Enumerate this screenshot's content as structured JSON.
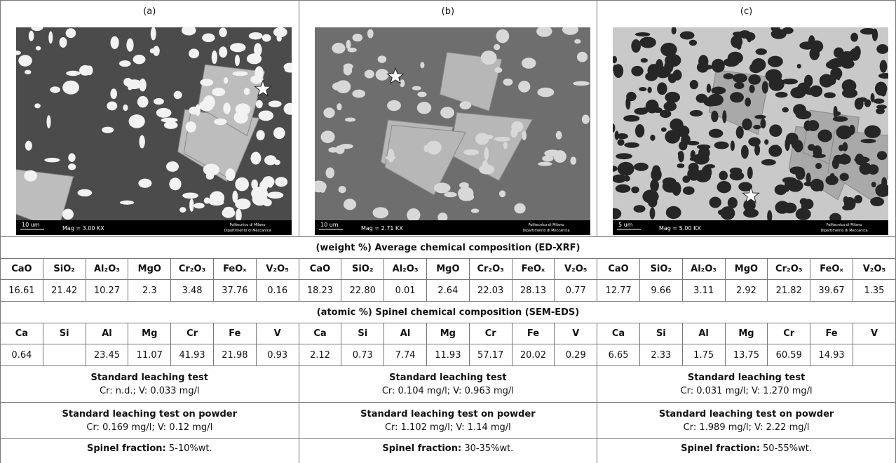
{
  "panels": [
    {
      "label": "(a)",
      "scale_bar": "10 um",
      "magnification": "Mag = 3.00 KX",
      "institution": "Politecnico di Milano",
      "department": "Dipartimento di Meccanica"
    },
    {
      "label": "(b)",
      "scale_bar": "10 um",
      "magnification": "Mag = 2.71 KX",
      "institution": "Politecnico di Milano",
      "department": "Dipartimento di Meccanica"
    },
    {
      "label": "(c)",
      "scale_bar": "5 um",
      "magnification": "Mag = 5.00 KX",
      "institution": "Politecnico di Milano",
      "department": "Dipartimento di Meccanica"
    }
  ],
  "table": {
    "xrf_title_prefix": "(weight %)",
    "xrf_title": "Average chemical composition (ED-XRF)",
    "xrf_headers": [
      "CaO",
      "SiO₂",
      "Al₂O₃",
      "MgO",
      "Cr₂O₃",
      "FeOₓ",
      "V₂O₅",
      "CaO",
      "SiO₂",
      "Al₂O₃",
      "MgO",
      "Cr₂O₃",
      "FeOₓ",
      "V₂O₅",
      "CaO",
      "SiO₂",
      "Al₂O₃",
      "MgO",
      "Cr₂O₃",
      "FeOₓ",
      "V₂O₅"
    ],
    "xrf_values": [
      "16.61",
      "21.42",
      "10.27",
      "2.3",
      "3.48",
      "37.76",
      "0.16",
      "18.23",
      "22.80",
      "0.01",
      "2.64",
      "22.03",
      "28.13",
      "0.77",
      "12.77",
      "9.66",
      "3.11",
      "2.92",
      "21.82",
      "39.67",
      "1.35"
    ],
    "eds_title_prefix": "(atomic %)",
    "eds_title": "Spinel chemical composition (SEM-EDS)",
    "eds_headers": [
      "Ca",
      "Si",
      "Al",
      "Mg",
      "Cr",
      "Fe",
      "V",
      "Ca",
      "Si",
      "Al",
      "Mg",
      "Cr",
      "Fe",
      "V",
      "Ca",
      "Si",
      "Al",
      "Mg",
      "Cr",
      "Fe",
      "V"
    ],
    "eds_values": [
      "0.64",
      null,
      "23.45",
      "11.07",
      "41.93",
      "21.98",
      "0.93",
      "2.12",
      "0.73",
      "7.74",
      "11.93",
      "57.17",
      "20.02",
      "0.29",
      "6.65",
      "2.33",
      "1.75",
      "13.75",
      "60.59",
      "14.93",
      null
    ],
    "leaching": [
      {
        "title": "Standard leaching test",
        "text": "Cr: n.d.; V: 0.033 mg/l"
      },
      {
        "title": "Standard leaching test",
        "text": "Cr: 0.104 mg/l; V: 0.963 mg/l"
      },
      {
        "title": "Standard leaching test",
        "text": "Cr: 0.031 mg/l; V: 1.270 mg/l"
      }
    ],
    "powder": [
      {
        "title": "Standard leaching test on powder",
        "text": "Cr: 0.169 mg/l; V: 0.12 mg/l"
      },
      {
        "title": "Standard leaching test on powder",
        "text": "Cr: 1.102 mg/l; V: 1.14 mg/l"
      },
      {
        "title": "Standard leaching test on powder",
        "text": "Cr: 1.989 mg/l; V: 2.22 mg/l"
      }
    ],
    "spinel": [
      {
        "label": "Spinel fraction:",
        "text": "5-10%wt."
      },
      {
        "label": "Spinel fraction:",
        "text": "30-35%wt."
      },
      {
        "label": "Spinel fraction:",
        "text": "50-55%wt."
      }
    ]
  }
}
